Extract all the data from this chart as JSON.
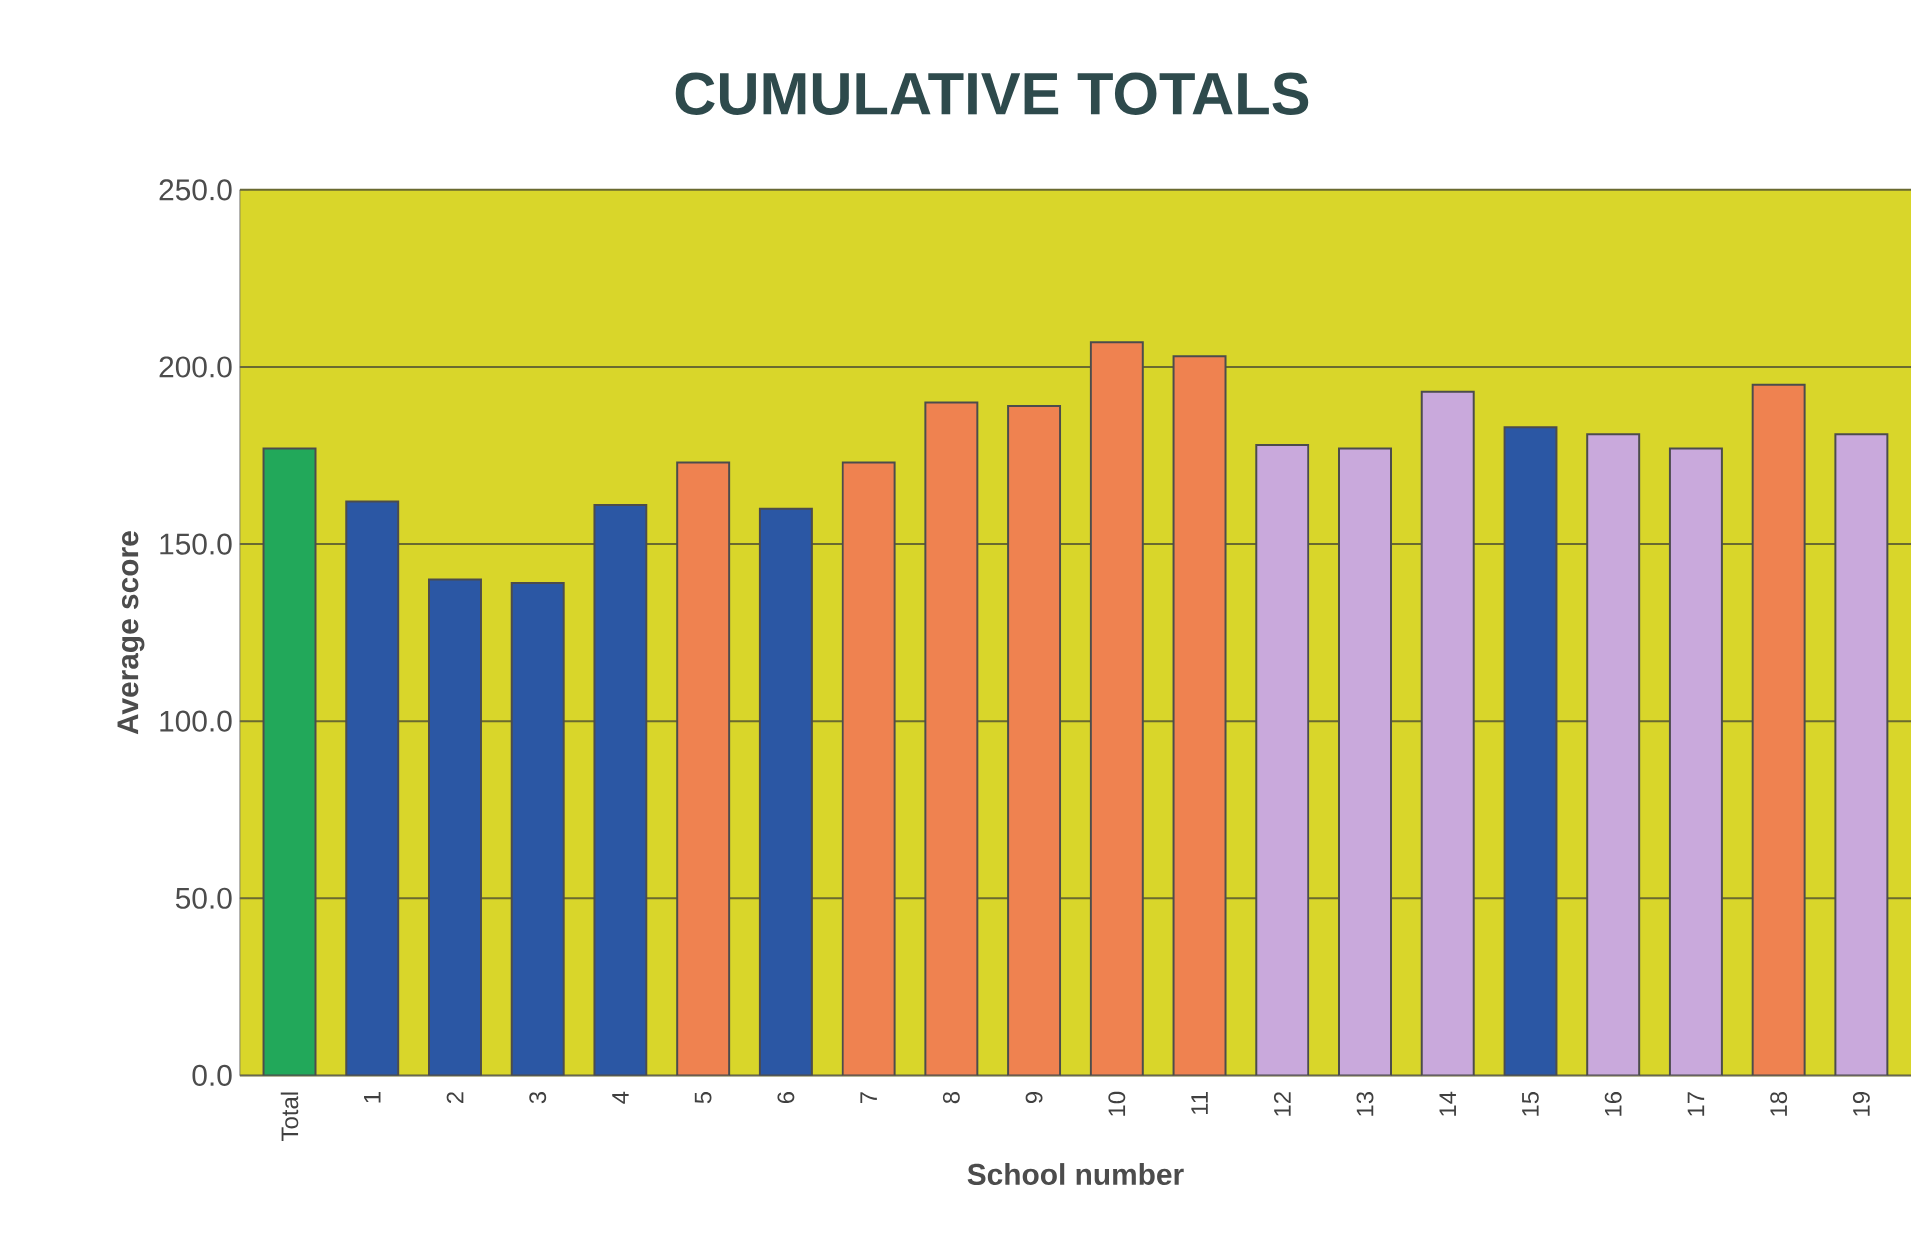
{
  "chart_data": {
    "type": "bar",
    "title": "CUMULATIVE TOTALS",
    "xlabel": "School number",
    "ylabel": "Average score",
    "categories": [
      "Total",
      "1",
      "2",
      "3",
      "4",
      "5",
      "6",
      "7",
      "8",
      "9",
      "10",
      "11",
      "12",
      "13",
      "14",
      "15",
      "16",
      "17",
      "18",
      "19"
    ],
    "values": [
      177,
      162,
      140,
      139,
      161,
      173,
      160,
      173,
      190,
      189,
      207,
      203,
      178,
      177,
      193,
      183,
      181,
      177,
      195,
      181
    ],
    "colors": [
      "#22a85a",
      "#2b57a4",
      "#2b57a4",
      "#2b57a4",
      "#2b57a4",
      "#ef8250",
      "#2b57a4",
      "#ef8250",
      "#ef8250",
      "#ef8250",
      "#ef8250",
      "#ef8250",
      "#c9a9dc",
      "#c9a9dc",
      "#c9a9dc",
      "#2b57a4",
      "#c9a9dc",
      "#c9a9dc",
      "#ef8250",
      "#c9a9dc"
    ],
    "ylim": [
      0,
      250
    ],
    "yticks": [
      {
        "value": 0,
        "label": "0.0"
      },
      {
        "value": 50,
        "label": "50.0"
      },
      {
        "value": 100,
        "label": "100.0"
      },
      {
        "value": 150,
        "label": "150.0"
      },
      {
        "value": 200,
        "label": "200.0"
      },
      {
        "value": 250,
        "label": "250.0"
      }
    ],
    "grid": "y"
  }
}
